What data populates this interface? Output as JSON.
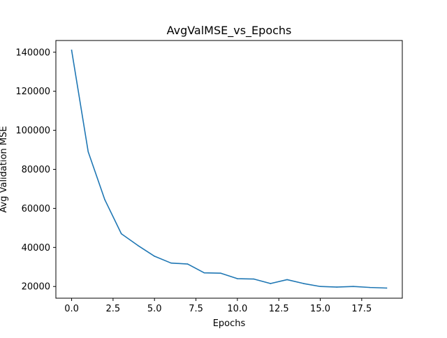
{
  "chart_data": {
    "type": "line",
    "title": "AvgValMSE_vs_Epochs",
    "xlabel": "Epochs",
    "ylabel": "Avg Validation MSE",
    "xlim": [
      -0.95,
      19.95
    ],
    "ylim": [
      14000,
      146000
    ],
    "xticks": [
      0,
      2.5,
      5,
      7.5,
      10,
      12.5,
      15,
      17.5
    ],
    "xtick_labels": [
      "0.0",
      "2.5",
      "5.0",
      "7.5",
      "10.0",
      "12.5",
      "15.0",
      "17.5"
    ],
    "yticks": [
      20000,
      40000,
      60000,
      80000,
      100000,
      120000,
      140000
    ],
    "ytick_labels": [
      "20000",
      "40000",
      "60000",
      "80000",
      "100000",
      "120000",
      "140000"
    ],
    "grid": false,
    "colors": {
      "line": "#1f77b4",
      "axes": "#000000",
      "background": "#ffffff"
    },
    "series": [
      {
        "x": [
          0,
          1,
          2,
          3,
          4,
          5,
          6,
          7,
          8,
          9,
          10,
          11,
          12,
          13,
          14,
          15,
          16,
          17,
          18,
          19
        ],
        "values": [
          141000,
          89000,
          64500,
          47000,
          41000,
          35500,
          32000,
          31500,
          27000,
          26800,
          24000,
          23800,
          21500,
          23500,
          21500,
          20000,
          19700,
          20000,
          19500,
          19200
        ]
      }
    ]
  }
}
